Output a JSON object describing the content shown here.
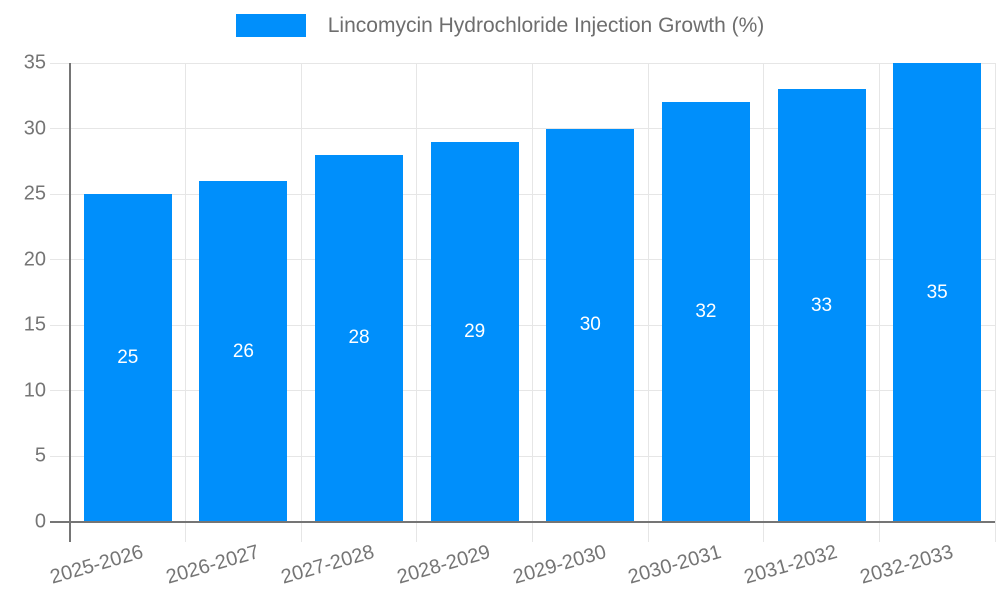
{
  "legend": {
    "label": "Lincomycin Hydrochloride Injection Growth (%)"
  },
  "colors": {
    "bar": "#008FFB",
    "bar_label": "#ffffff",
    "grid": "#e6e6e6",
    "axis": "#757575",
    "tick_text": "#757575",
    "legend_text": "#6e6e6e"
  },
  "chart_data": {
    "type": "bar",
    "title": "Lincomycin Hydrochloride Injection Growth (%)",
    "categories": [
      "2025-2026",
      "2026-2027",
      "2027-2028",
      "2028-2029",
      "2029-2030",
      "2030-2031",
      "2031-2032",
      "2032-2033"
    ],
    "values": [
      25,
      26,
      28,
      29,
      30,
      32,
      33,
      35
    ],
    "xlabel": "",
    "ylabel": "",
    "ylim": [
      0,
      35
    ],
    "ytick_step": 5,
    "yticks": [
      0,
      5,
      10,
      15,
      20,
      25,
      30,
      35
    ],
    "grid": true,
    "legend_position": "top",
    "value_labels": "inside-center"
  }
}
